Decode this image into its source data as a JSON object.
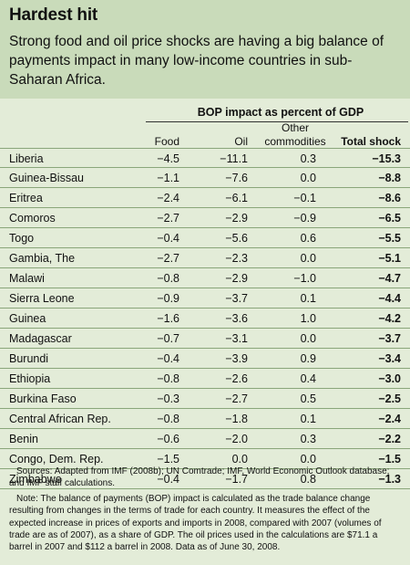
{
  "title": "Hardest hit",
  "subtitle": "Strong food and oil price shocks are having a big balance of payments impact in many low-income countries in sub-Saharan Africa.",
  "group_header": "BOP impact as percent of GDP",
  "columns": {
    "food": "Food",
    "oil": "Oil",
    "other_line1": "Other",
    "other_line2": "commodities",
    "total": "Total shock"
  },
  "chart_data": {
    "type": "table",
    "title": "Hardest hit",
    "columns": [
      "Food",
      "Oil",
      "Other commodities",
      "Total shock"
    ],
    "rows": [
      {
        "country": "Liberia",
        "food": "−4.5",
        "oil": "−11.1",
        "other": "0.3",
        "total": "−15.3"
      },
      {
        "country": "Guinea-Bissau",
        "food": "−1.1",
        "oil": "−7.6",
        "other": "0.0",
        "total": "−8.8"
      },
      {
        "country": "Eritrea",
        "food": "−2.4",
        "oil": "−6.1",
        "other": "−0.1",
        "total": "−8.6"
      },
      {
        "country": "Comoros",
        "food": "−2.7",
        "oil": "−2.9",
        "other": "−0.9",
        "total": "−6.5"
      },
      {
        "country": "Togo",
        "food": "−0.4",
        "oil": "−5.6",
        "other": "0.6",
        "total": "−5.5"
      },
      {
        "country": "Gambia, The",
        "food": "−2.7",
        "oil": "−2.3",
        "other": "0.0",
        "total": "−5.1"
      },
      {
        "country": "Malawi",
        "food": "−0.8",
        "oil": "−2.9",
        "other": "−1.0",
        "total": "−4.7"
      },
      {
        "country": "Sierra Leone",
        "food": "−0.9",
        "oil": "−3.7",
        "other": "0.1",
        "total": "−4.4"
      },
      {
        "country": "Guinea",
        "food": "−1.6",
        "oil": "−3.6",
        "other": "1.0",
        "total": "−4.2"
      },
      {
        "country": "Madagascar",
        "food": "−0.7",
        "oil": "−3.1",
        "other": "0.0",
        "total": "−3.7"
      },
      {
        "country": "Burundi",
        "food": "−0.4",
        "oil": "−3.9",
        "other": "0.9",
        "total": "−3.4"
      },
      {
        "country": "Ethiopia",
        "food": "−0.8",
        "oil": "−2.6",
        "other": "0.4",
        "total": "−3.0"
      },
      {
        "country": "Burkina Faso",
        "food": "−0.3",
        "oil": "−2.7",
        "other": "0.5",
        "total": "−2.5"
      },
      {
        "country": "Central African Rep.",
        "food": "−0.8",
        "oil": "−1.8",
        "other": "0.1",
        "total": "−2.4"
      },
      {
        "country": "Benin",
        "food": "−0.6",
        "oil": "−2.0",
        "other": "0.3",
        "total": "−2.2"
      },
      {
        "country": "Congo, Dem. Rep.",
        "food": "−1.5",
        "oil": "0.0",
        "other": "0.0",
        "total": "−1.5"
      },
      {
        "country": "Zimbabwe",
        "food": "−0.4",
        "oil": "−1.7",
        "other": "0.8",
        "total": "−1.3"
      }
    ]
  },
  "notes": {
    "sources": "Sources: Adapted from IMF (2008b); UN Comtrade; IMF, World Economic Outlook database; and IMF staff calculations.",
    "note": "Note: The balance of payments (BOP) impact is calculated as the trade balance change resulting from changes in the terms of trade for each country. It measures the effect of the expected increase in prices of exports and imports in 2008, compared with 2007 (volumes of trade are as of 2007), as a share of GDP. The oil prices used in the calculations are $71.1 a barrel in 2007 and $112 a barrel in 2008. Data as of June 30, 2008."
  },
  "colors": {
    "header_bg": "#c9dbba",
    "table_bg": "#e3ecd8",
    "rule": "#8aa67a"
  }
}
